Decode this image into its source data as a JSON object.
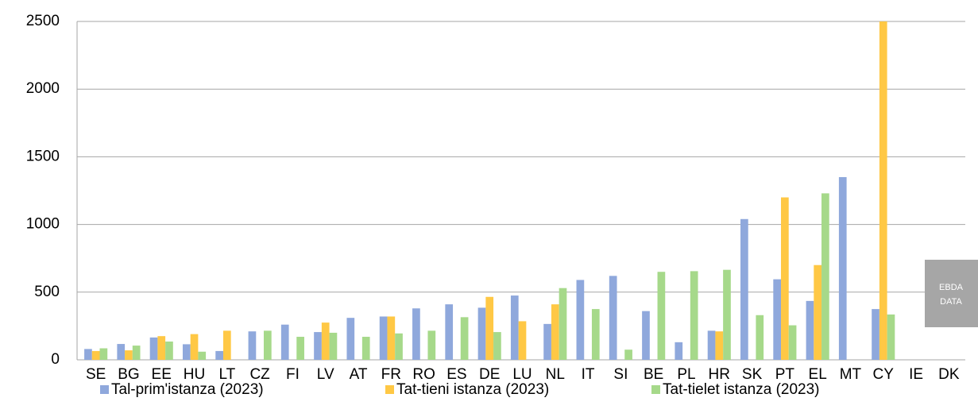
{
  "chart_data": {
    "type": "bar",
    "categories": [
      "SE",
      "BG",
      "EE",
      "HU",
      "LT",
      "CZ",
      "FI",
      "LV",
      "AT",
      "FR",
      "RO",
      "ES",
      "DE",
      "LU",
      "NL",
      "IT",
      "SI",
      "BE",
      "PL",
      "HR",
      "SK",
      "PT",
      "EL",
      "MT",
      "CY",
      "IE",
      "DK"
    ],
    "series": [
      {
        "name": "Tal-prim'istanza (2023)",
        "color": "#8FA8DC",
        "values": [
          80,
          117,
          165,
          115,
          65,
          210,
          260,
          205,
          310,
          320,
          380,
          410,
          385,
          475,
          265,
          590,
          620,
          360,
          130,
          215,
          1040,
          595,
          435,
          1350,
          375,
          null,
          null
        ]
      },
      {
        "name": "Tat-tieni istanza (2023)",
        "color": "#FFC845",
        "values": [
          65,
          70,
          175,
          190,
          215,
          null,
          null,
          275,
          null,
          320,
          null,
          null,
          465,
          285,
          410,
          null,
          null,
          null,
          null,
          210,
          null,
          1200,
          700,
          null,
          2500,
          null,
          null
        ]
      },
      {
        "name": "Tat-tielet istanza (2023)",
        "color": "#A6D98A",
        "values": [
          85,
          105,
          135,
          60,
          null,
          215,
          170,
          200,
          170,
          195,
          215,
          315,
          205,
          null,
          530,
          375,
          75,
          650,
          655,
          665,
          330,
          255,
          1230,
          null,
          335,
          null,
          null
        ]
      }
    ],
    "ylim": [
      0,
      2500
    ],
    "yticks": [
      0,
      500,
      1000,
      1500,
      2000,
      2500
    ],
    "grid": true,
    "legend": "bottom",
    "watermark": [
      "EBDA",
      "DATA"
    ]
  }
}
